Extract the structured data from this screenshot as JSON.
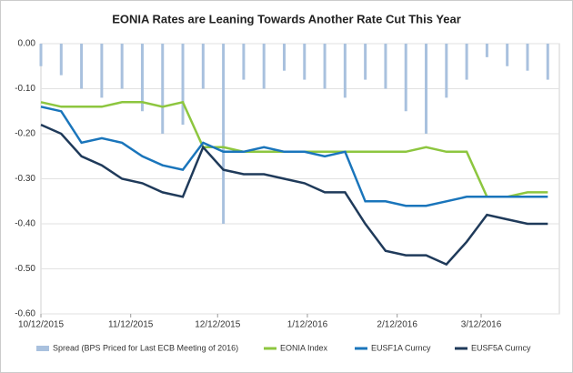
{
  "chart_data": {
    "type": "line",
    "title": "EONIA Rates are Leaning Towards Another Rate Cut This Year",
    "x": [
      "10/12/2015",
      "10/19/2015",
      "10/26/2015",
      "11/2/2015",
      "11/9/2015",
      "11/16/2015",
      "11/23/2015",
      "11/30/2015",
      "12/7/2015",
      "12/14/2015",
      "12/21/2015",
      "12/28/2015",
      "1/4/2016",
      "1/11/2016",
      "1/18/2016",
      "1/25/2016",
      "2/1/2016",
      "2/8/2016",
      "2/15/2016",
      "2/22/2016",
      "2/29/2016",
      "3/7/2016",
      "3/14/2016",
      "3/21/2016",
      "3/28/2016",
      "4/4/2016"
    ],
    "xlim": [
      "10/12/2015",
      "4/8/2016"
    ],
    "xticks": [
      "10/12/2015",
      "11/12/2015",
      "12/12/2015",
      "1/12/2016",
      "2/12/2016",
      "3/12/2016"
    ],
    "ylim": [
      -0.6,
      0
    ],
    "yticks": [
      {
        "value": 0,
        "label": "0.00"
      },
      {
        "value": -0.1,
        "label": "-0.10"
      },
      {
        "value": -0.2,
        "label": "-0.20"
      },
      {
        "value": -0.3,
        "label": "-0.30"
      },
      {
        "value": -0.4,
        "label": "-0.40"
      },
      {
        "value": -0.5,
        "label": "-0.50"
      },
      {
        "value": -0.6,
        "label": "-0.60"
      }
    ],
    "grid": true,
    "legend": "bottom",
    "series": [
      {
        "name": "Spread (BPS Priced for Last ECB Meeting of 2016)",
        "type": "bar",
        "color": "#a9c1de",
        "values": [
          -0.05,
          -0.07,
          -0.1,
          -0.12,
          -0.1,
          -0.15,
          -0.2,
          -0.18,
          -0.1,
          -0.4,
          -0.08,
          -0.1,
          -0.06,
          -0.08,
          -0.1,
          -0.12,
          -0.08,
          -0.1,
          -0.15,
          -0.2,
          -0.12,
          -0.08,
          -0.03,
          -0.05,
          -0.06,
          -0.08
        ]
      },
      {
        "name": "EONIA Index",
        "type": "line",
        "color": "#8dc63f",
        "values": [
          -0.13,
          -0.14,
          -0.14,
          -0.14,
          -0.13,
          -0.13,
          -0.14,
          -0.13,
          -0.23,
          -0.23,
          -0.24,
          -0.24,
          -0.24,
          -0.24,
          -0.24,
          -0.24,
          -0.24,
          -0.24,
          -0.24,
          -0.23,
          -0.24,
          -0.24,
          -0.34,
          -0.34,
          -0.33,
          -0.33
        ]
      },
      {
        "name": "EUSF1A Curncy",
        "type": "line",
        "color": "#1a75bb",
        "values": [
          -0.14,
          -0.15,
          -0.22,
          -0.21,
          -0.22,
          -0.25,
          -0.27,
          -0.28,
          -0.22,
          -0.24,
          -0.24,
          -0.23,
          -0.24,
          -0.24,
          -0.25,
          -0.24,
          -0.35,
          -0.35,
          -0.36,
          -0.36,
          -0.35,
          -0.34,
          -0.34,
          -0.34,
          -0.34,
          -0.34
        ]
      },
      {
        "name": "EUSF5A Curncy",
        "type": "line",
        "color": "#1f3a5a",
        "values": [
          -0.18,
          -0.2,
          -0.25,
          -0.27,
          -0.3,
          -0.31,
          -0.33,
          -0.34,
          -0.23,
          -0.28,
          -0.29,
          -0.29,
          -0.3,
          -0.31,
          -0.33,
          -0.33,
          -0.4,
          -0.46,
          -0.47,
          -0.47,
          -0.49,
          -0.44,
          -0.38,
          -0.39,
          -0.4,
          -0.4
        ]
      }
    ]
  }
}
